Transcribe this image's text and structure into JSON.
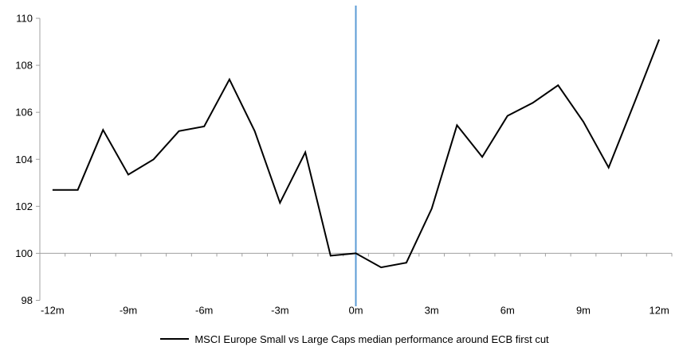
{
  "chart_data": {
    "type": "line",
    "title": "",
    "xlabel": "",
    "ylabel": "",
    "x": [
      "-12m",
      "-11m",
      "-10m",
      "-9m",
      "-8m",
      "-7m",
      "-6m",
      "-5m",
      "-4m",
      "-3m",
      "-2m",
      "-1m",
      "0m",
      "1m",
      "2m",
      "3m",
      "4m",
      "5m",
      "6m",
      "7m",
      "8m",
      "9m",
      "10m",
      "11m",
      "12m"
    ],
    "series": [
      {
        "name": "MSCI Europe Small vs Large Caps median performance around ECB first cut",
        "color": "#000000",
        "values": [
          102.7,
          102.7,
          105.25,
          103.35,
          104.0,
          105.2,
          105.4,
          107.4,
          105.2,
          102.15,
          104.3,
          99.9,
          100.0,
          99.4,
          99.6,
          101.9,
          105.45,
          104.1,
          105.85,
          106.4,
          107.15,
          105.6,
          103.65,
          106.35,
          109.1
        ]
      }
    ],
    "ylim": [
      98,
      110
    ],
    "y_ticks": [
      98,
      100,
      102,
      104,
      106,
      108,
      110
    ],
    "x_tick_labels": [
      "-12m",
      "-9m",
      "-6m",
      "-3m",
      "0m",
      "3m",
      "6m",
      "9m",
      "12m"
    ],
    "x_tick_every": 3,
    "axis_crosses_at": 100,
    "event_line": {
      "x": "0m",
      "color": "#5B9BD5"
    },
    "legend": "MSCI Europe Small vs Large Caps median performance around ECB first cut",
    "legend_position": "bottom",
    "axis_color": "#A0A0A0",
    "grid": false
  }
}
